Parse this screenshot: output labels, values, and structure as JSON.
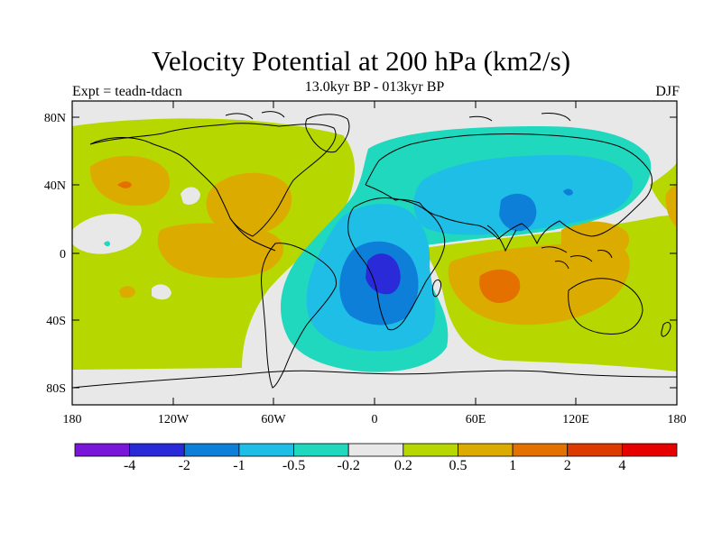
{
  "title": "Velocity Potential at 200 hPa (km2/s)",
  "subtitle": "13.0kyr BP - 013kyr BP",
  "left_label": "Expt = teadn-tdacn",
  "right_label": "DJF",
  "map": {
    "lat_ticks": [
      "80N",
      "40N",
      "0",
      "40S",
      "80S"
    ],
    "lon_ticks": [
      "180",
      "120W",
      "60W",
      "0",
      "60E",
      "120E",
      "180"
    ]
  },
  "colorbar": {
    "labels": [
      "-4",
      "-2",
      "-1",
      "-0.5",
      "-0.2",
      "0.2",
      "0.5",
      "1",
      "2",
      "4"
    ],
    "colors": [
      "#7a16d8",
      "#2a2ad8",
      "#0e7fd8",
      "#1fbee6",
      "#1fd8be",
      "#e8e8e8",
      "#b6d800",
      "#dcab00",
      "#e47000",
      "#dc3a00",
      "#e60000"
    ]
  }
}
